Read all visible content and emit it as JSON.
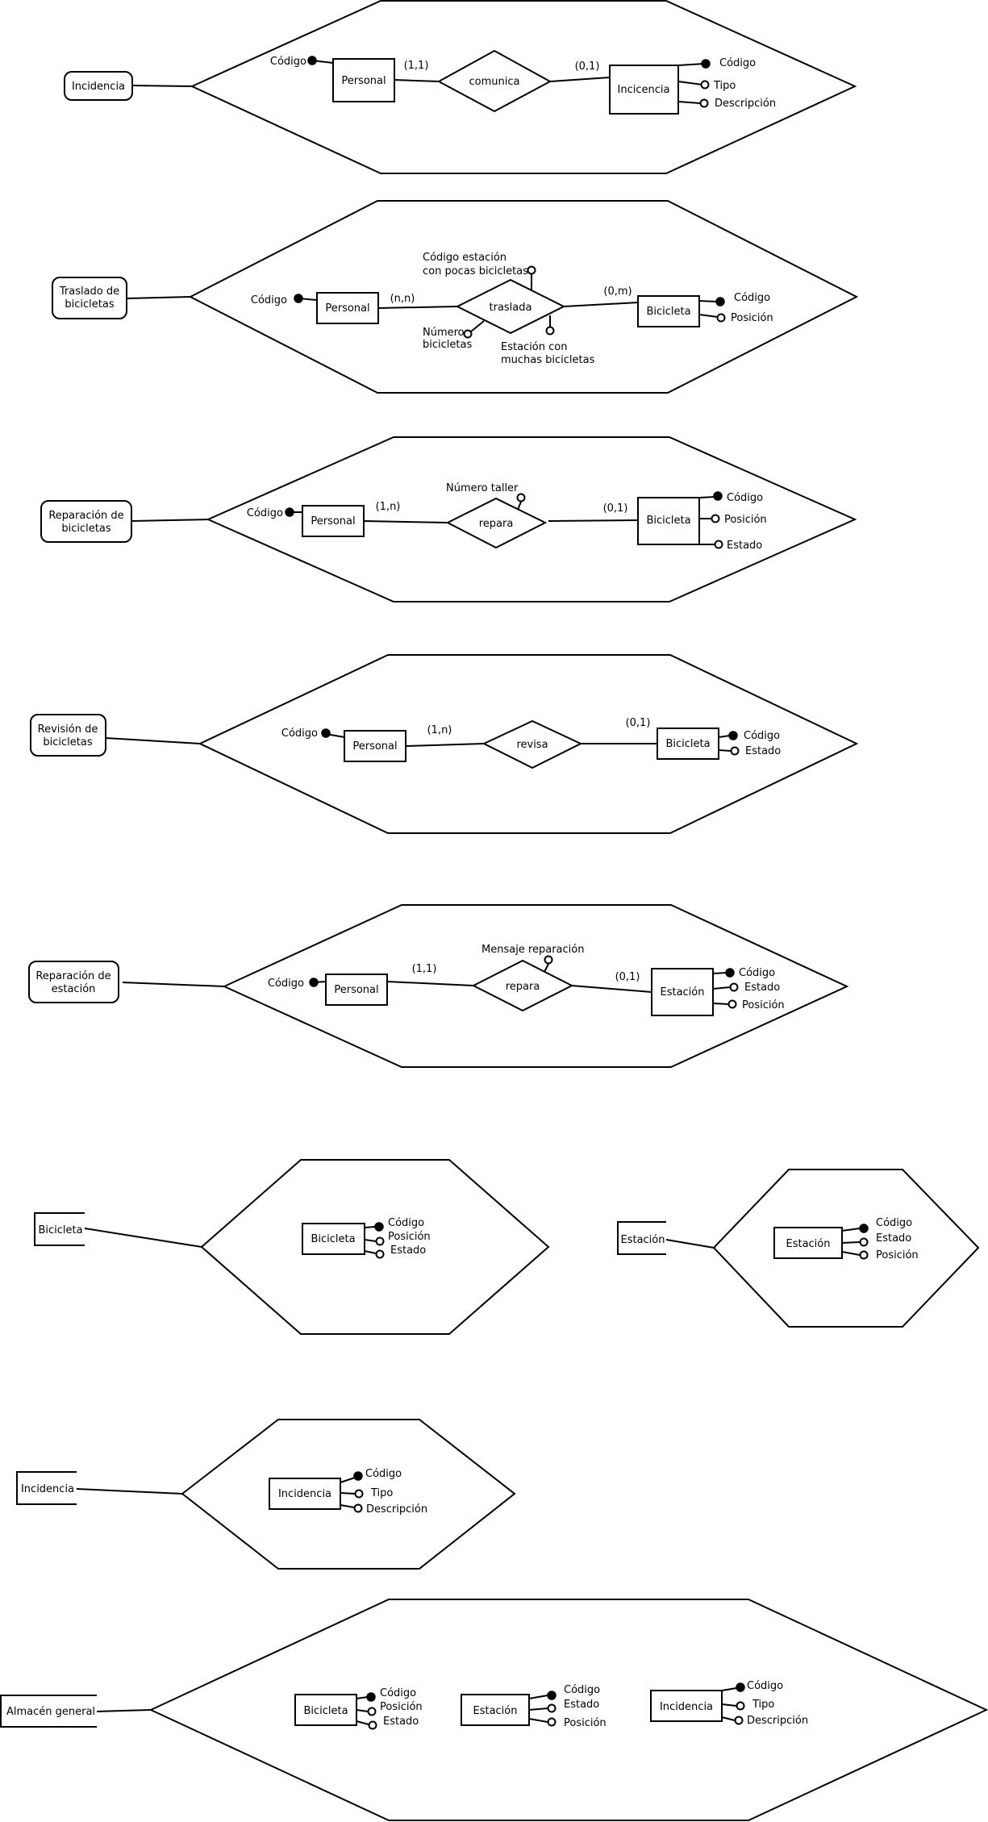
{
  "diagram_1": {
    "process": "Incidencia",
    "attr_personal_codigo": "Código",
    "entity_personal": "Personal",
    "card_personal": "(1,1)",
    "relationship": "comunica",
    "card_incidencia": "(0,1)",
    "entity_incidencia": "Incicencia",
    "attrs_incidencia": [
      "Código",
      "Tipo",
      "Descripción"
    ]
  },
  "diagram_2": {
    "process": [
      "Traslado de",
      "bicicletas"
    ],
    "attr_personal_codigo": "Código",
    "entity_personal": "Personal",
    "card_personal": "(n,n)",
    "relationship": "traslada",
    "rel_attr_pocas": [
      "Código estación",
      "con pocas bicicletas"
    ],
    "rel_attr_numero": [
      "Número",
      "bicicletas"
    ],
    "rel_attr_muchas": [
      "Estación con",
      "muchas bicicletas"
    ],
    "card_bicicleta": "(0,m)",
    "entity_bicicleta": "Bicicleta",
    "attrs_bicicleta": [
      "Código",
      "Posición"
    ]
  },
  "diagram_3": {
    "process": [
      "Reparación de",
      "bicicletas"
    ],
    "attr_personal_codigo": "Código",
    "entity_personal": "Personal",
    "card_personal": "(1,n)",
    "relationship": "repara",
    "rel_attr_taller": "Número taller",
    "card_bicicleta": "(0,1)",
    "entity_bicicleta": "Bicicleta",
    "attrs_bicicleta": [
      "Código",
      "Posición",
      "Estado"
    ]
  },
  "diagram_4": {
    "process": [
      "Revisión de",
      "bicicletas"
    ],
    "attr_personal_codigo": "Código",
    "entity_personal": "Personal",
    "card_personal": "(1,n)",
    "relationship": "revisa",
    "card_bicicleta": "(0,1)",
    "entity_bicicleta": "Bicicleta",
    "attrs_bicicleta": [
      "Código",
      "Estado"
    ]
  },
  "diagram_5": {
    "process": [
      "Reparación de",
      "estación"
    ],
    "attr_personal_codigo": "Código",
    "entity_personal": "Personal",
    "card_personal": "(1,1)",
    "relationship": "repara",
    "rel_attr_mensaje": "Mensaje reparación",
    "card_estacion": "(0,1)",
    "entity_estacion": "Estación",
    "attrs_estacion": [
      "Código",
      "Estado",
      "Posición"
    ]
  },
  "store_bicicleta": {
    "store": "Bicicleta",
    "entity": "Bicicleta",
    "attrs": [
      "Código",
      "Posición",
      "Estado"
    ]
  },
  "store_estacion": {
    "store": "Estación",
    "entity": "Estación",
    "attrs": [
      "Código",
      "Estado",
      "Posición"
    ]
  },
  "store_incidencia": {
    "store": "Incidencia",
    "entity": "Incidencia",
    "attrs": [
      "Código",
      "Tipo",
      "Descripción"
    ]
  },
  "store_general": {
    "store": "Almacén general",
    "entity_bicicleta": "Bicicleta",
    "attrs_bicicleta": [
      "Código",
      "Posición",
      "Estado"
    ],
    "entity_estacion": "Estación",
    "attrs_estacion": [
      "Código",
      "Estado",
      "Posición"
    ],
    "entity_incidencia": "Incidencia",
    "attrs_incidencia": [
      "Código",
      "Tipo",
      "Descripción"
    ]
  }
}
